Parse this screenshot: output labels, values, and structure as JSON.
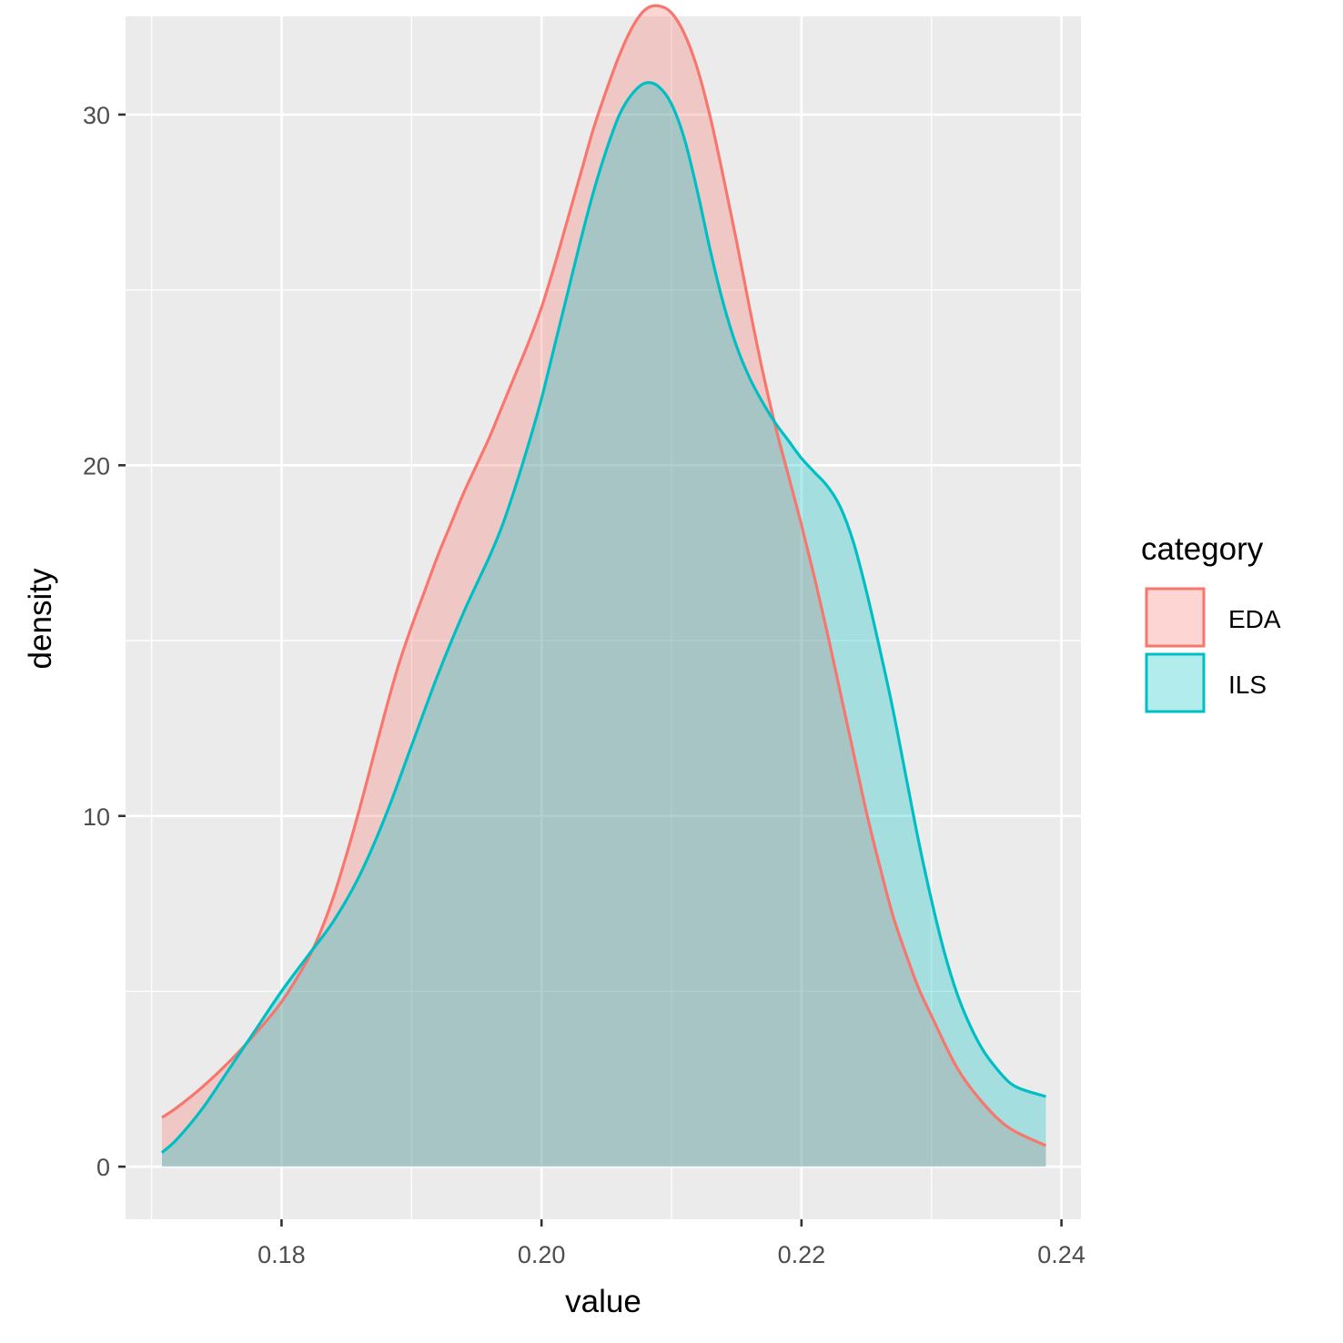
{
  "chart_data": {
    "type": "area",
    "subtype": "density",
    "xlabel": "value",
    "ylabel": "density",
    "xlim": [
      0.168,
      0.2415
    ],
    "ylim": [
      -1.5,
      32.8
    ],
    "x_ticks": [
      0.18,
      0.2,
      0.22,
      0.24
    ],
    "x_tick_labels": [
      "0.18",
      "0.20",
      "0.22",
      "0.24"
    ],
    "y_ticks": [
      0,
      10,
      20,
      30
    ],
    "y_tick_labels": [
      "0",
      "10",
      "20",
      "30"
    ],
    "grid": true,
    "legend": {
      "title": "category",
      "position": "right"
    },
    "colors": {
      "panel_bg": "#EBEBEB",
      "grid": "#FFFFFF",
      "EDA": "#F8766D",
      "ILS": "#00BFC4"
    },
    "series": [
      {
        "name": "EDA",
        "x": [
          0.1708,
          0.172,
          0.174,
          0.176,
          0.178,
          0.18,
          0.182,
          0.183,
          0.184,
          0.185,
          0.186,
          0.187,
          0.188,
          0.189,
          0.19,
          0.191,
          0.192,
          0.193,
          0.194,
          0.195,
          0.196,
          0.197,
          0.198,
          0.199,
          0.2,
          0.201,
          0.202,
          0.203,
          0.204,
          0.205,
          0.206,
          0.207,
          0.208,
          0.209,
          0.21,
          0.211,
          0.212,
          0.213,
          0.214,
          0.215,
          0.216,
          0.217,
          0.218,
          0.219,
          0.22,
          0.221,
          0.222,
          0.223,
          0.224,
          0.225,
          0.226,
          0.227,
          0.228,
          0.229,
          0.23,
          0.232,
          0.234,
          0.236,
          0.2388
        ],
        "y": [
          1.4,
          1.7,
          2.3,
          3.0,
          3.8,
          4.7,
          5.9,
          6.7,
          7.7,
          8.9,
          10.2,
          11.6,
          13.0,
          14.3,
          15.4,
          16.4,
          17.4,
          18.3,
          19.2,
          20.0,
          20.8,
          21.7,
          22.6,
          23.5,
          24.5,
          25.7,
          27.0,
          28.3,
          29.6,
          30.7,
          31.7,
          32.5,
          33.0,
          33.1,
          32.9,
          32.3,
          31.3,
          29.9,
          28.2,
          26.4,
          24.5,
          22.7,
          21.1,
          19.7,
          18.3,
          16.8,
          15.2,
          13.5,
          11.8,
          10.1,
          8.6,
          7.2,
          6.1,
          5.1,
          4.3,
          2.8,
          1.8,
          1.1,
          0.6
        ]
      },
      {
        "name": "ILS",
        "x": [
          0.1708,
          0.172,
          0.174,
          0.176,
          0.178,
          0.18,
          0.182,
          0.184,
          0.186,
          0.188,
          0.19,
          0.192,
          0.194,
          0.196,
          0.197,
          0.198,
          0.199,
          0.2,
          0.201,
          0.202,
          0.203,
          0.204,
          0.205,
          0.206,
          0.207,
          0.208,
          0.209,
          0.21,
          0.211,
          0.212,
          0.213,
          0.214,
          0.215,
          0.216,
          0.217,
          0.218,
          0.219,
          0.22,
          0.221,
          0.222,
          0.223,
          0.224,
          0.225,
          0.226,
          0.227,
          0.228,
          0.229,
          0.23,
          0.231,
          0.232,
          0.233,
          0.234,
          0.235,
          0.236,
          0.237,
          0.2388
        ],
        "y": [
          0.4,
          0.8,
          1.7,
          2.8,
          3.9,
          5.0,
          6.0,
          7.0,
          8.3,
          10.0,
          12.0,
          14.0,
          15.8,
          17.4,
          18.3,
          19.4,
          20.6,
          21.9,
          23.4,
          24.9,
          26.4,
          27.8,
          29.0,
          30.0,
          30.6,
          30.9,
          30.8,
          30.3,
          29.3,
          27.8,
          26.1,
          24.6,
          23.4,
          22.5,
          21.8,
          21.2,
          20.7,
          20.2,
          19.8,
          19.4,
          18.8,
          17.8,
          16.4,
          14.8,
          13.1,
          11.2,
          9.3,
          7.6,
          6.1,
          4.9,
          4.0,
          3.3,
          2.8,
          2.4,
          2.2,
          2.0
        ]
      }
    ]
  }
}
